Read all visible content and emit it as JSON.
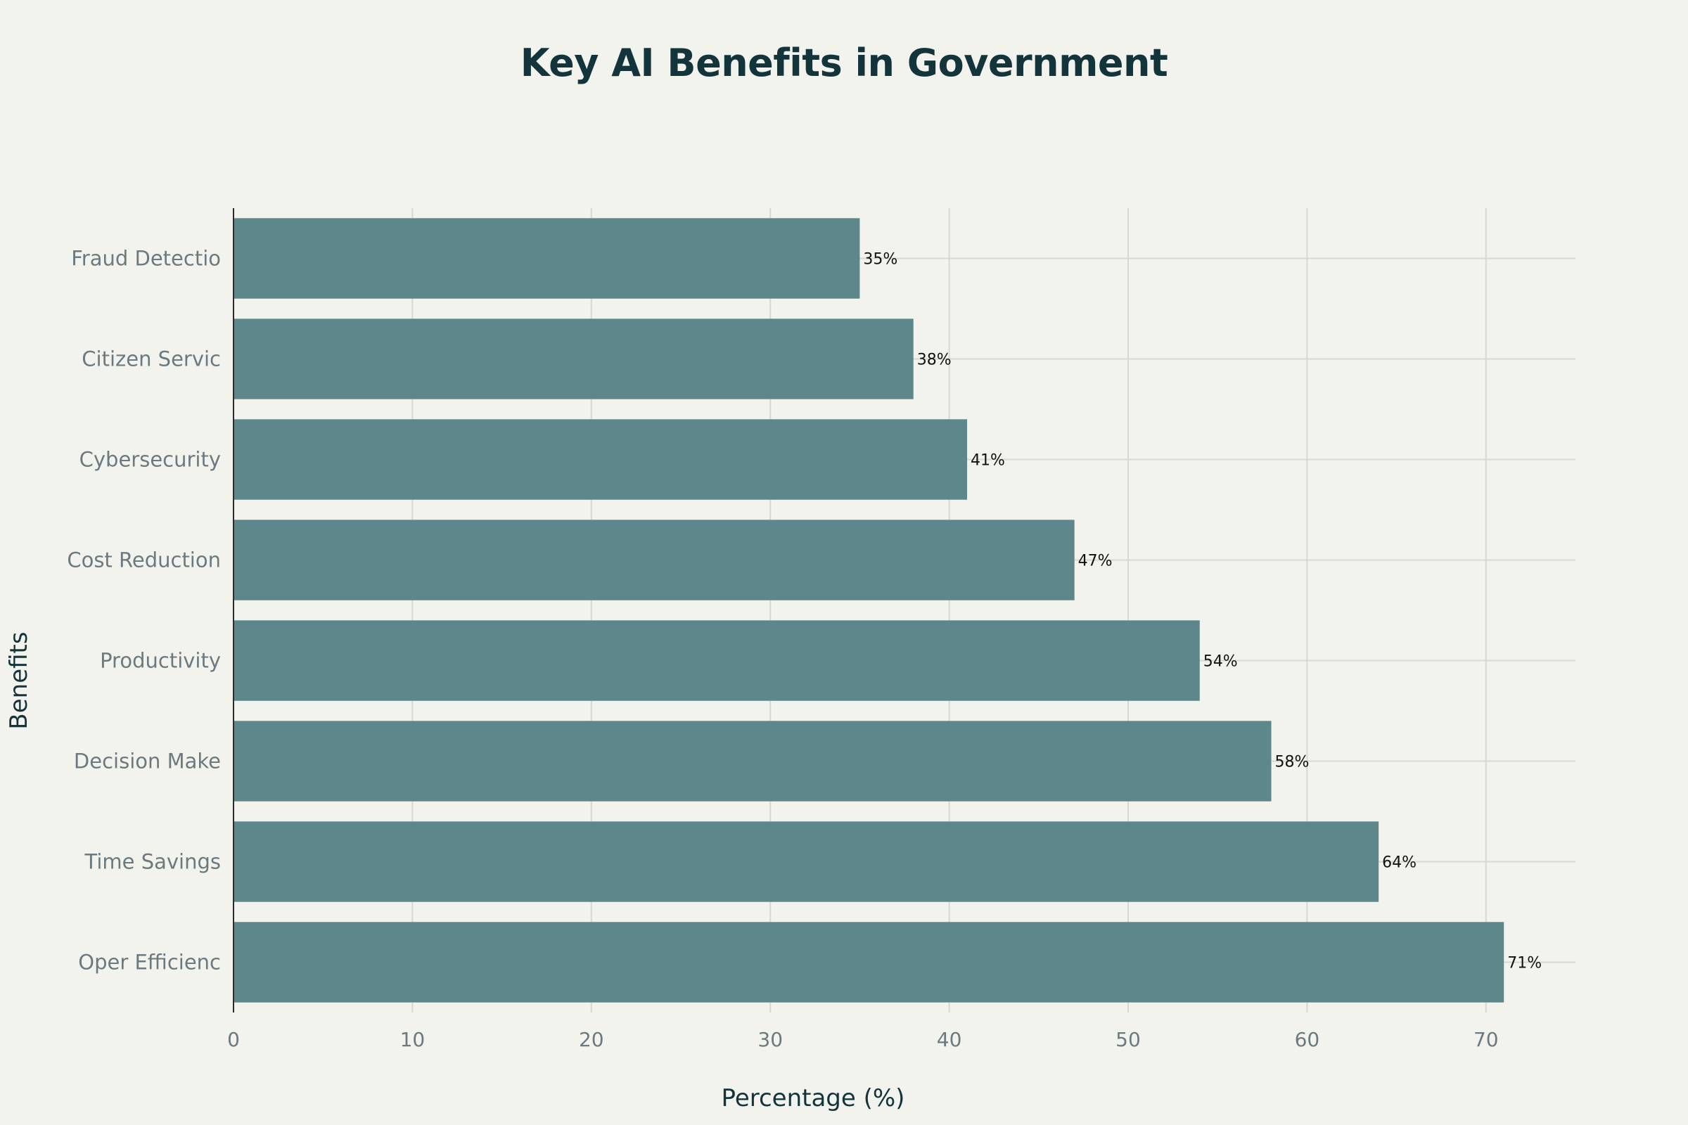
{
  "chart_data": {
    "type": "bar",
    "orientation": "horizontal",
    "title": "Key AI Benefits in Government",
    "xlabel": "Percentage (%)",
    "ylabel": "Benefits",
    "categories": [
      "Fraud Detectio",
      "Citizen Servic",
      "Cybersecurity",
      "Cost Reduction",
      "Productivity",
      "Decision Make",
      "Time Savings",
      "Oper Efficienc"
    ],
    "values": [
      35,
      38,
      41,
      47,
      54,
      58,
      64,
      71
    ],
    "value_labels": [
      "35%",
      "38%",
      "41%",
      "47%",
      "54%",
      "58%",
      "64%",
      "71%"
    ],
    "xlim": [
      0,
      75
    ],
    "xticks": [
      0,
      10,
      20,
      30,
      40,
      50,
      60,
      70
    ],
    "grid": true,
    "legend": "none",
    "colors": {
      "bar": "#5e878c",
      "background": "#f3f3ee",
      "grid": "#d6d8d3",
      "title": "#13343b"
    }
  }
}
